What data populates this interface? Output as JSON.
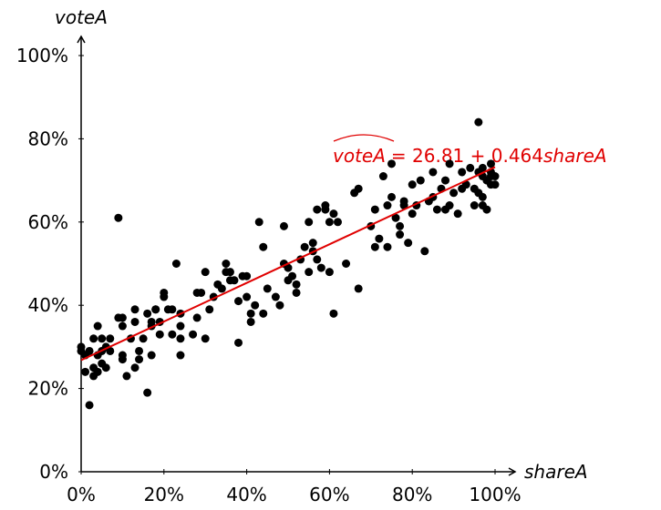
{
  "chart_data": {
    "type": "scatter",
    "x_label": "shareA",
    "y_label": "voteA",
    "xlim": [
      0,
      100
    ],
    "ylim": [
      0,
      100
    ],
    "xticks": [
      {
        "value": 0,
        "label": "0%"
      },
      {
        "value": 20,
        "label": "20%"
      },
      {
        "value": 40,
        "label": "40%"
      },
      {
        "value": 60,
        "label": "60%"
      },
      {
        "value": 80,
        "label": "80%"
      },
      {
        "value": 100,
        "label": "100%"
      }
    ],
    "yticks": [
      {
        "value": 0,
        "label": "0%"
      },
      {
        "value": 20,
        "label": "20%"
      },
      {
        "value": 40,
        "label": "40%"
      },
      {
        "value": 60,
        "label": "60%"
      },
      {
        "value": 80,
        "label": "80%"
      },
      {
        "value": 100,
        "label": "100%"
      }
    ],
    "grid": false,
    "series": [
      {
        "color": "#000000",
        "x": [
          0,
          0,
          1,
          1,
          2,
          2,
          3,
          3,
          3,
          4,
          4,
          4,
          5,
          5,
          5,
          6,
          6,
          7,
          7,
          9,
          9,
          10,
          10,
          10,
          10,
          11,
          12,
          13,
          13,
          13,
          14,
          14,
          15,
          16,
          16,
          17,
          17,
          17,
          18,
          18,
          19,
          19,
          20,
          20,
          21,
          22,
          22,
          23,
          24,
          24,
          24,
          24,
          27,
          28,
          28,
          29,
          30,
          30,
          31,
          32,
          33,
          34,
          35,
          35,
          36,
          36,
          37,
          38,
          38,
          39,
          40,
          40,
          41,
          41,
          42,
          43,
          44,
          44,
          45,
          47,
          48,
          49,
          49,
          50,
          50,
          51,
          52,
          52,
          53,
          54,
          55,
          55,
          56,
          56,
          57,
          57,
          58,
          59,
          59,
          60,
          60,
          61,
          61,
          62,
          64,
          66,
          67,
          67,
          70,
          71,
          71,
          72,
          73,
          74,
          74,
          75,
          75,
          76,
          77,
          77,
          78,
          78,
          79,
          80,
          80,
          81,
          82,
          83,
          84,
          85,
          85,
          86,
          87,
          88,
          88,
          89,
          89,
          90,
          91,
          92,
          92,
          93,
          94,
          95,
          95,
          96,
          96,
          96,
          97,
          97,
          97,
          97,
          98,
          98,
          99,
          99,
          99,
          99,
          100,
          100
        ],
        "values": [
          29,
          30,
          24,
          28,
          16,
          29,
          23,
          25,
          32,
          24,
          28,
          35,
          26,
          32,
          29,
          25,
          30,
          32,
          29,
          37,
          61,
          37,
          35,
          27,
          28,
          23,
          32,
          25,
          36,
          39,
          27,
          29,
          32,
          38,
          19,
          35,
          36,
          28,
          39,
          39,
          33,
          36,
          42,
          43,
          39,
          33,
          39,
          50,
          28,
          32,
          35,
          38,
          33,
          37,
          43,
          43,
          48,
          32,
          39,
          42,
          45,
          44,
          50,
          48,
          46,
          48,
          46,
          41,
          31,
          47,
          47,
          42,
          36,
          38,
          40,
          60,
          54,
          38,
          44,
          42,
          40,
          59,
          50,
          46,
          49,
          47,
          45,
          43,
          51,
          54,
          60,
          48,
          55,
          53,
          51,
          63,
          49,
          64,
          63,
          48,
          60,
          38,
          62,
          60,
          50,
          67,
          68,
          44,
          59,
          54,
          63,
          56,
          71,
          54,
          64,
          66,
          74,
          61,
          59,
          57,
          64,
          65,
          55,
          62,
          69,
          64,
          70,
          53,
          65,
          66,
          72,
          63,
          68,
          63,
          70,
          64,
          74,
          67,
          62,
          68,
          72,
          69,
          73,
          64,
          68,
          84,
          72,
          67,
          71,
          73,
          64,
          66,
          70,
          63,
          71,
          69,
          72,
          74,
          71,
          69
        ]
      }
    ],
    "fit": {
      "intercept": 26.81,
      "slope": 0.464,
      "color": "#e00000",
      "label": {
        "lhs": "voteA",
        "op": "= 26.81 + 0.464",
        "var": "shareA"
      }
    }
  }
}
